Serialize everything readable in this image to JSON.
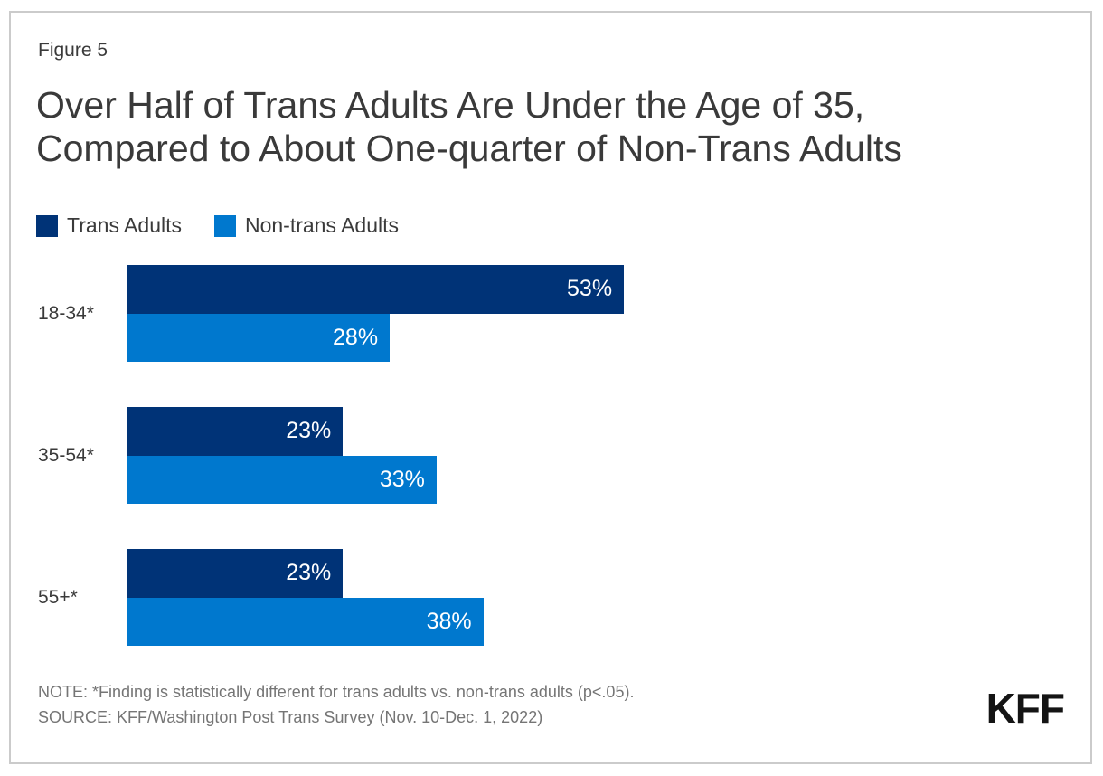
{
  "figure_label": "Figure 5",
  "title": "Over Half of Trans Adults Are Under the Age of 35, Compared to About One-quarter of Non-Trans Adults",
  "title_lines": [
    "Over Half of Trans Adults Are Under the Age of 35,",
    "Compared to About One-quarter of Non-Trans Adults"
  ],
  "colors": {
    "trans": "#003377",
    "non_trans": "#0078CE",
    "text": "#3a3a3a",
    "note_text": "#757575",
    "border": "#cbcbcb",
    "value_label": "#ffffff"
  },
  "legend": {
    "items": [
      {
        "label": "Trans Adults",
        "color": "#003377"
      },
      {
        "label": "Non-trans Adults",
        "color": "#0078CE"
      }
    ]
  },
  "chart_data": {
    "type": "bar",
    "orientation": "horizontal",
    "categories": [
      "18-34*",
      "35-54*",
      "55+*"
    ],
    "series": [
      {
        "name": "Trans Adults",
        "color": "#003377",
        "values": [
          53,
          23,
          23
        ]
      },
      {
        "name": "Non-trans Adults",
        "color": "#0078CE",
        "values": [
          28,
          33,
          38
        ]
      }
    ],
    "value_suffix": "%",
    "xlim": [
      0,
      100
    ],
    "grid": false,
    "axis_lines": false,
    "legend_position": "top-left",
    "value_labels": "inside-end"
  },
  "footer": {
    "note": "NOTE: *Finding is statistically different for trans adults vs. non-trans adults (p<.05).",
    "source": "SOURCE: KFF/Washington Post Trans Survey (Nov. 10-Dec. 1, 2022)",
    "logo": "KFF"
  }
}
